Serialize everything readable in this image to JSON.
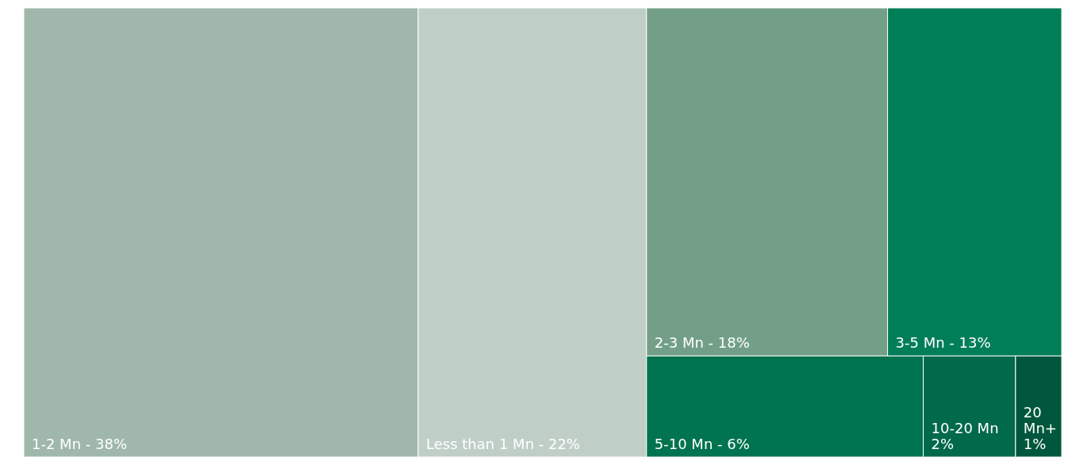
{
  "chart_data": {
    "type": "other",
    "categories": [
      "1-2 Mn -",
      "Less than 1 Mn -",
      "2-3 Mn -",
      "3-5 Mn -",
      "5-10 Mn -",
      "10-20 Mn",
      "20 Mn+"
    ],
    "values": [
      38,
      22,
      18,
      13,
      6,
      2,
      1
    ],
    "value_labels": [
      "38%",
      "22%",
      "18%",
      "13%",
      "6%",
      "2%",
      "1%"
    ],
    "colors": [
      "#9fb8ab",
      "#bfcfc8",
      "#739f89",
      "#007e57",
      "#00734f",
      "#006a4a",
      "#00573c"
    ]
  }
}
